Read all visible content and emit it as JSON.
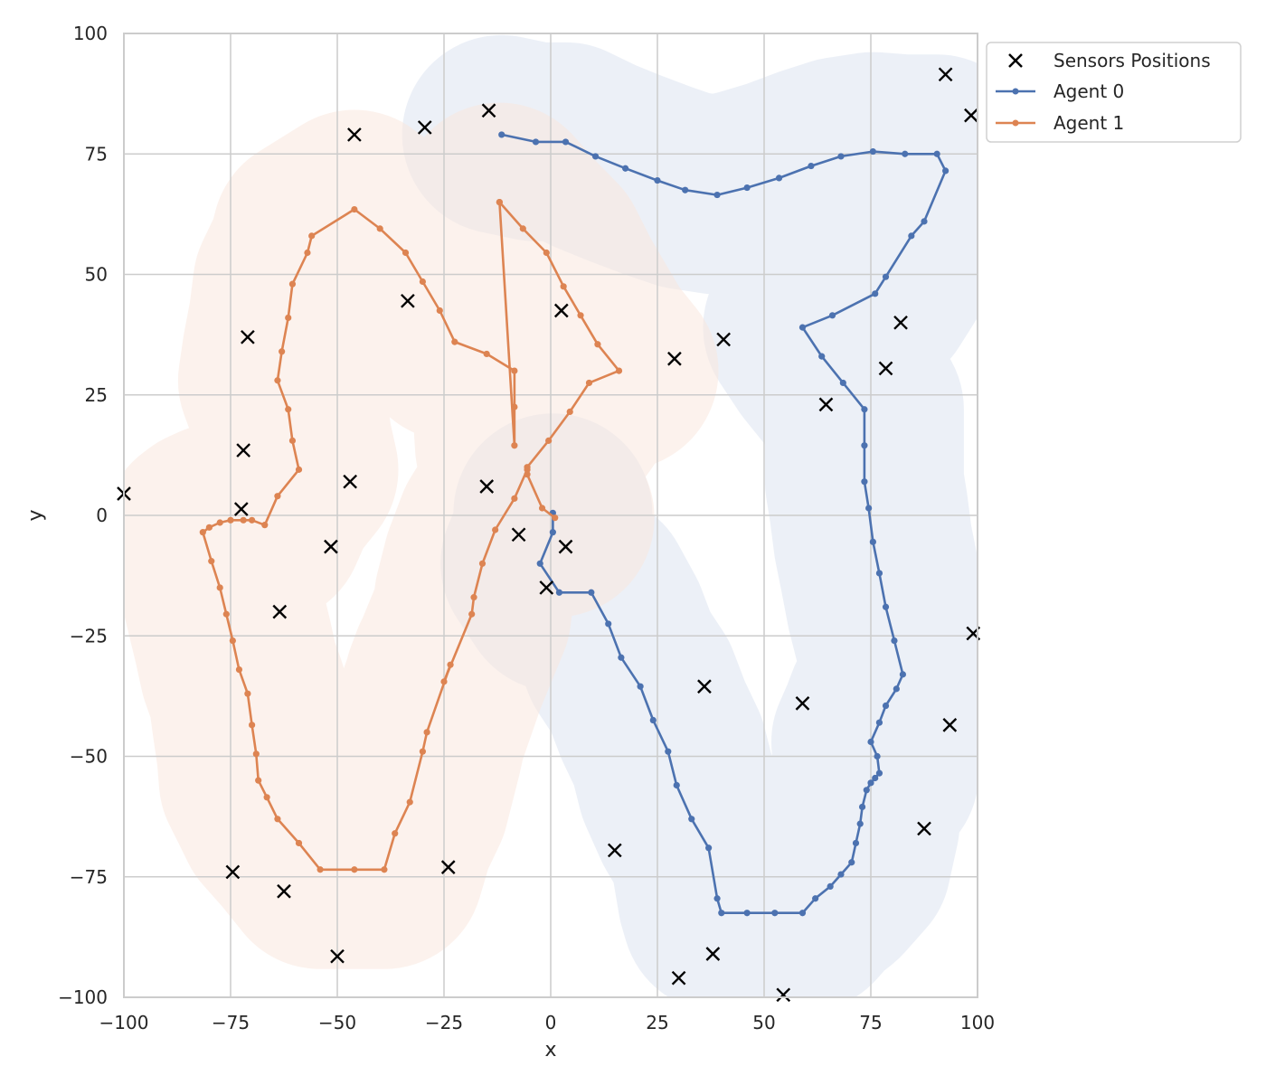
{
  "chart_data": {
    "type": "line",
    "xlabel": "x",
    "ylabel": "y",
    "xlim": [
      -100,
      100
    ],
    "ylim": [
      -100,
      100
    ],
    "xticks": [
      -100,
      -75,
      -50,
      -25,
      0,
      25,
      50,
      75,
      100
    ],
    "yticks": [
      -100,
      -75,
      -50,
      -25,
      0,
      25,
      50,
      75,
      100
    ],
    "xtick_labels": [
      "−100",
      "−75",
      "−50",
      "−25",
      "0",
      "25",
      "50",
      "75",
      "100"
    ],
    "ytick_labels": [
      "−100",
      "−75",
      "−50",
      "−25",
      "0",
      "25",
      "50",
      "75",
      "100"
    ],
    "grid": true,
    "legend_position": "outside-top-right",
    "colors": {
      "agent0": "#4c72b0",
      "agent1": "#dd8452",
      "sensor": "#000000",
      "band0": "#dde3f0",
      "band1": "#f9e8df",
      "grid": "#cccccc"
    },
    "sensors": {
      "name": "Sensors Positions",
      "points": [
        [
          -100,
          4.5
        ],
        [
          -74.5,
          -74
        ],
        [
          -72.5,
          1.3
        ],
        [
          -72,
          13.5
        ],
        [
          -71,
          37
        ],
        [
          -63.5,
          -20
        ],
        [
          -62.5,
          -78
        ],
        [
          -51.5,
          -6.5
        ],
        [
          -50,
          -91.5
        ],
        [
          -47,
          7
        ],
        [
          -46,
          79
        ],
        [
          -33.5,
          44.5
        ],
        [
          -29.5,
          80.5
        ],
        [
          -24,
          -73
        ],
        [
          -15,
          6
        ],
        [
          -14.5,
          84
        ],
        [
          -7.5,
          -4
        ],
        [
          -1,
          -15
        ],
        [
          2.5,
          42.5
        ],
        [
          3.5,
          -6.5
        ],
        [
          15,
          -69.5
        ],
        [
          29,
          32.5
        ],
        [
          30,
          -96
        ],
        [
          36,
          -35.5
        ],
        [
          38,
          -91
        ],
        [
          40.5,
          36.5
        ],
        [
          54.5,
          -99.5
        ],
        [
          59,
          -39
        ],
        [
          64.5,
          23
        ],
        [
          78.5,
          30.5
        ],
        [
          82,
          40
        ],
        [
          87.5,
          -65
        ],
        [
          92.5,
          91.5
        ],
        [
          93.5,
          -43.5
        ],
        [
          98.5,
          83
        ],
        [
          99,
          -24.5
        ]
      ]
    },
    "series": [
      {
        "name": "Agent 0",
        "points": [
          [
            0.5,
            0.5
          ],
          [
            0.5,
            -3.5
          ],
          [
            -2.5,
            -10
          ],
          [
            2,
            -16
          ],
          [
            9.5,
            -16
          ],
          [
            13.5,
            -22.5
          ],
          [
            16.5,
            -29.5
          ],
          [
            21,
            -35.5
          ],
          [
            24,
            -42.5
          ],
          [
            27.5,
            -49
          ],
          [
            29.5,
            -56
          ],
          [
            33,
            -63
          ],
          [
            37,
            -69
          ],
          [
            39,
            -79.5
          ],
          [
            40,
            -82.5
          ],
          [
            46,
            -82.5
          ],
          [
            52.5,
            -82.5
          ],
          [
            59,
            -82.5
          ],
          [
            62,
            -79.5
          ],
          [
            65.5,
            -77
          ],
          [
            68,
            -74.5
          ],
          [
            70.5,
            -72
          ],
          [
            71.5,
            -68
          ],
          [
            72.5,
            -64
          ],
          [
            73,
            -60.5
          ],
          [
            74,
            -57
          ],
          [
            75,
            -55.5
          ],
          [
            76,
            -54.5
          ],
          [
            77,
            -53.5
          ],
          [
            76.5,
            -50
          ],
          [
            75,
            -47
          ],
          [
            77,
            -43
          ],
          [
            78.5,
            -39.5
          ],
          [
            81,
            -36
          ],
          [
            82.5,
            -33
          ],
          [
            80.5,
            -26
          ],
          [
            78.5,
            -19
          ],
          [
            77,
            -12
          ],
          [
            75.5,
            -5.5
          ],
          [
            74.5,
            1.5
          ],
          [
            73.5,
            7
          ],
          [
            73.5,
            14.5
          ],
          [
            73.5,
            22
          ],
          [
            68.5,
            27.5
          ],
          [
            63.5,
            33
          ],
          [
            59,
            39
          ],
          [
            66,
            41.5
          ],
          [
            76,
            46
          ],
          [
            78.5,
            49.5
          ],
          [
            84.5,
            58
          ],
          [
            87.5,
            61
          ],
          [
            92.5,
            71.5
          ],
          [
            90.5,
            75
          ],
          [
            83,
            75
          ],
          [
            75.5,
            75.5
          ],
          [
            68,
            74.5
          ],
          [
            61,
            72.5
          ],
          [
            53.5,
            70
          ],
          [
            46,
            68
          ],
          [
            39,
            66.5
          ],
          [
            31.5,
            67.5
          ],
          [
            25,
            69.5
          ],
          [
            17.5,
            72
          ],
          [
            10.5,
            74.5
          ],
          [
            3.5,
            77.5
          ],
          [
            -3.5,
            77.5
          ],
          [
            -11.5,
            79
          ]
        ]
      },
      {
        "name": "Agent 1",
        "points": [
          [
            1,
            -0.5
          ],
          [
            -2,
            1.5
          ],
          [
            -5.5,
            8.5
          ],
          [
            -5.5,
            10
          ],
          [
            -0.5,
            15.5
          ],
          [
            4.5,
            21.5
          ],
          [
            9,
            27.5
          ],
          [
            16,
            30
          ],
          [
            11,
            35.5
          ],
          [
            7,
            41.5
          ],
          [
            3,
            47.5
          ],
          [
            -1,
            54.5
          ],
          [
            -6.5,
            59.5
          ],
          [
            -12,
            65
          ],
          [
            -12,
            65
          ],
          [
            -8.5,
            14.5
          ],
          [
            -8.5,
            22.5
          ],
          [
            -8.5,
            30
          ],
          [
            -15,
            33.5
          ],
          [
            -22.5,
            36
          ],
          [
            -26,
            42.5
          ],
          [
            -30,
            48.5
          ],
          [
            -34,
            54.5
          ],
          [
            -40,
            59.5
          ],
          [
            -46,
            63.5
          ],
          [
            -56,
            58
          ],
          [
            -57,
            54.5
          ],
          [
            -60.5,
            48
          ],
          [
            -61.5,
            41
          ],
          [
            -63,
            34
          ],
          [
            -64,
            28
          ],
          [
            -61.5,
            22
          ],
          [
            -60.5,
            15.5
          ],
          [
            -59,
            9.5
          ],
          [
            -64,
            4
          ],
          [
            -67,
            -2
          ],
          [
            -70,
            -1
          ],
          [
            -72,
            -1
          ],
          [
            -75,
            -1
          ],
          [
            -77.5,
            -1.5
          ],
          [
            -80,
            -2.5
          ],
          [
            -81.5,
            -3.5
          ],
          [
            -79.5,
            -9.5
          ],
          [
            -77.5,
            -15
          ],
          [
            -76,
            -20.5
          ],
          [
            -74.5,
            -26
          ],
          [
            -73,
            -32
          ],
          [
            -71,
            -37
          ],
          [
            -70,
            -43.5
          ],
          [
            -69,
            -49.5
          ],
          [
            -68.5,
            -55
          ],
          [
            -66.5,
            -58.5
          ],
          [
            -64,
            -63
          ],
          [
            -59,
            -68
          ],
          [
            -54,
            -73.5
          ],
          [
            -46,
            -73.5
          ],
          [
            -39,
            -73.5
          ],
          [
            -36.5,
            -66
          ],
          [
            -33,
            -59.5
          ],
          [
            -30,
            -49
          ],
          [
            -29,
            -45
          ],
          [
            -23.5,
            -31
          ],
          [
            -25,
            -34.5
          ],
          [
            -18.5,
            -20.5
          ],
          [
            -18,
            -17
          ],
          [
            -16,
            -10
          ],
          [
            -13,
            -3
          ],
          [
            -8.5,
            3.5
          ],
          [
            -5.5,
            9.5
          ]
        ]
      }
    ],
    "legend": [
      "Sensors Positions",
      "Agent 0",
      "Agent 1"
    ]
  }
}
